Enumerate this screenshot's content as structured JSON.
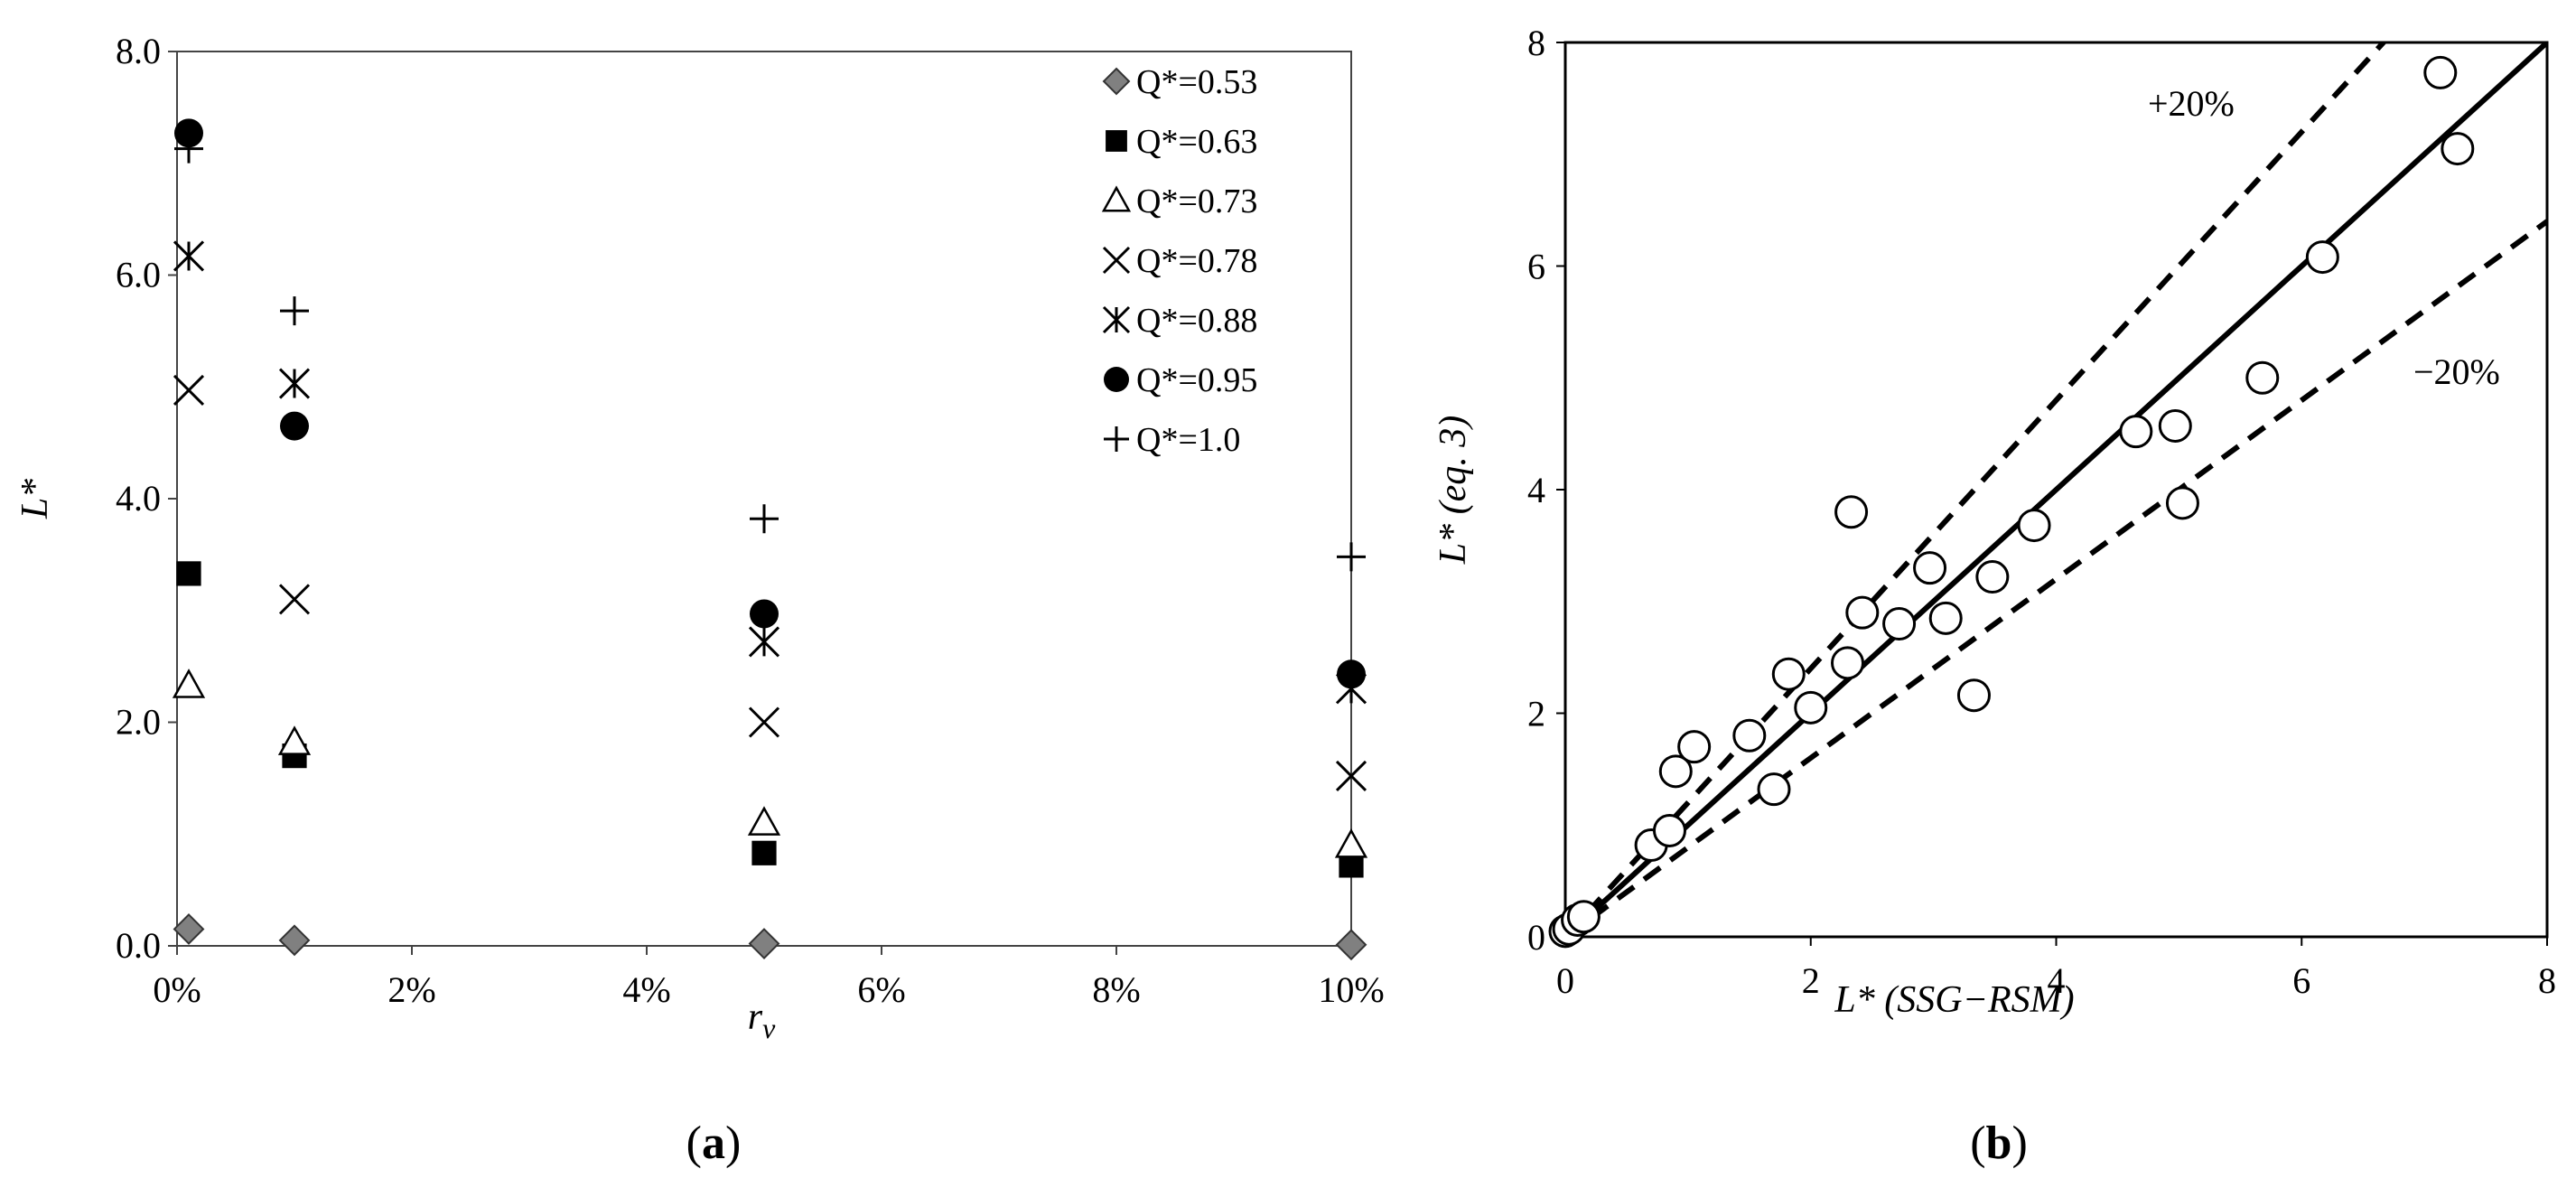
{
  "chart_data": [
    {
      "type": "scatter",
      "panel": "a",
      "panel_label_open": "(",
      "panel_label_letter": "a",
      "panel_label_close": ")",
      "xlabel": "r",
      "xlabel_sub": "v",
      "ylabel": "L*",
      "xlim": [
        0,
        10
      ],
      "ylim": [
        0,
        8
      ],
      "x_ticks": [
        {
          "value": 0,
          "label": "0%"
        },
        {
          "value": 2,
          "label": "2%"
        },
        {
          "value": 4,
          "label": "4%"
        },
        {
          "value": 6,
          "label": "6%"
        },
        {
          "value": 8,
          "label": "8%"
        },
        {
          "value": 10,
          "label": "10%"
        }
      ],
      "y_ticks": [
        {
          "value": 0,
          "label": "0.0"
        },
        {
          "value": 2,
          "label": "2.0"
        },
        {
          "value": 4,
          "label": "4.0"
        },
        {
          "value": 6,
          "label": "6.0"
        },
        {
          "value": 8,
          "label": "8.0"
        }
      ],
      "legend_position": "top-right",
      "series": [
        {
          "name": "Q*=0.53",
          "marker": "diamond",
          "points": [
            [
              0.1,
              0.15
            ],
            [
              1,
              0.05
            ],
            [
              5,
              0.02
            ],
            [
              10,
              0.01
            ]
          ]
        },
        {
          "name": "Q*=0.63",
          "marker": "square",
          "points": [
            [
              0.1,
              3.33
            ],
            [
              1,
              1.7
            ],
            [
              5,
              0.83
            ],
            [
              10,
              0.72
            ]
          ]
        },
        {
          "name": "Q*=0.73",
          "marker": "triangle",
          "points": [
            [
              0.1,
              2.33
            ],
            [
              1,
              1.82
            ],
            [
              5,
              1.1
            ],
            [
              10,
              0.9
            ]
          ]
        },
        {
          "name": "Q*=0.78",
          "marker": "x",
          "points": [
            [
              0.1,
              4.97
            ],
            [
              1,
              3.1
            ],
            [
              5,
              2.0
            ],
            [
              10,
              1.52
            ]
          ]
        },
        {
          "name": "Q*=0.88",
          "marker": "asterisk",
          "points": [
            [
              0.1,
              6.17
            ],
            [
              1,
              5.03
            ],
            [
              5,
              2.72
            ],
            [
              10,
              2.3
            ]
          ]
        },
        {
          "name": "Q*=0.95",
          "marker": "circle",
          "points": [
            [
              0.1,
              7.27
            ],
            [
              1,
              4.65
            ],
            [
              5,
              2.97
            ],
            [
              10,
              2.43
            ]
          ]
        },
        {
          "name": "Q*=1.0",
          "marker": "plus",
          "points": [
            [
              0.1,
              7.13
            ],
            [
              1,
              5.68
            ],
            [
              5,
              3.82
            ],
            [
              10,
              3.48
            ]
          ]
        }
      ]
    },
    {
      "type": "scatter",
      "panel": "b",
      "panel_label_open": "(",
      "panel_label_letter": "b",
      "panel_label_close": ")",
      "xlabel": "L* (SSG−RSM)",
      "ylabel": "L* (eq. 3)",
      "xlim": [
        0,
        8
      ],
      "ylim": [
        0,
        8
      ],
      "x_ticks": [
        {
          "value": 0,
          "label": "0"
        },
        {
          "value": 2,
          "label": "2"
        },
        {
          "value": 4,
          "label": "4"
        },
        {
          "value": 6,
          "label": "6"
        },
        {
          "value": 8,
          "label": "8"
        }
      ],
      "y_ticks": [
        {
          "value": 0,
          "label": "0"
        },
        {
          "value": 2,
          "label": "2"
        },
        {
          "value": 4,
          "label": "4"
        },
        {
          "value": 6,
          "label": "6"
        },
        {
          "value": 8,
          "label": "8"
        }
      ],
      "reference_lines": [
        {
          "name": "1:1",
          "slope": 1.0,
          "style": "solid"
        },
        {
          "name": "+20%",
          "slope": 1.2,
          "style": "dashed",
          "label": "+20%"
        },
        {
          "name": "-20%",
          "slope": 0.8,
          "style": "dashed",
          "label": "−20%"
        }
      ],
      "points": [
        [
          0.0,
          0.05
        ],
        [
          0.03,
          0.07
        ],
        [
          0.1,
          0.15
        ],
        [
          0.15,
          0.18
        ],
        [
          0.7,
          0.82
        ],
        [
          0.85,
          0.95
        ],
        [
          0.9,
          1.48
        ],
        [
          1.05,
          1.7
        ],
        [
          1.5,
          1.8
        ],
        [
          1.7,
          1.32
        ],
        [
          1.82,
          2.35
        ],
        [
          2.0,
          2.05
        ],
        [
          2.3,
          2.45
        ],
        [
          2.33,
          3.8
        ],
        [
          2.42,
          2.9
        ],
        [
          2.72,
          2.8
        ],
        [
          2.97,
          3.3
        ],
        [
          3.1,
          2.85
        ],
        [
          3.33,
          2.16
        ],
        [
          3.48,
          3.22
        ],
        [
          3.82,
          3.68
        ],
        [
          4.65,
          4.52
        ],
        [
          4.97,
          4.57
        ],
        [
          5.03,
          3.88
        ],
        [
          5.68,
          5.0
        ],
        [
          6.17,
          6.08
        ],
        [
          7.13,
          7.73
        ],
        [
          7.27,
          7.05
        ]
      ]
    }
  ]
}
